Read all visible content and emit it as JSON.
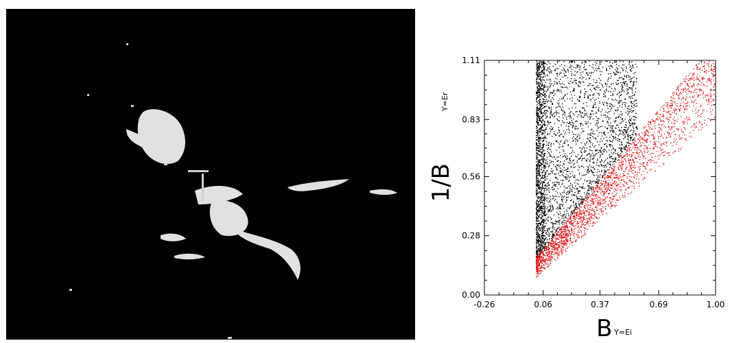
{
  "colors": {
    "background": "#ffffff",
    "image_background": "#000000",
    "image_foreground": "#f2f2f2",
    "series_black": "#000000",
    "series_red": "#e01010"
  },
  "image_panel": {
    "description_icon": "grayscale-thermal-image"
  },
  "chart_data": {
    "type": "scatter",
    "title": "",
    "xlabel": {
      "main": "B",
      "subscript": "Y=Ei"
    },
    "ylabel": {
      "main": "1/B",
      "subscript": "Y=Er"
    },
    "xlim": [
      -0.26,
      1.0
    ],
    "ylim": [
      0.0,
      1.11
    ],
    "x_ticks": [
      "-0.26",
      "0.06",
      "0.37",
      "0.69",
      "1.00"
    ],
    "y_ticks": [
      "0.00",
      "0.28",
      "0.56",
      "0.83",
      "1.11"
    ],
    "grid": false,
    "legend": "none",
    "series": [
      {
        "color": "#000000",
        "region": {
          "x_start": 0.02,
          "x_max_top": 0.42,
          "y_min_at_x_start": 0.18,
          "edge_slope": 1.05,
          "y_max": 1.11
        }
      },
      {
        "color": "#e01010",
        "region": {
          "x_start": 0.02,
          "x_end": 1.0,
          "y_lower_at_x_start": 0.08,
          "y_lower_at_x_end": 0.84,
          "y_upper_at_x_start": 0.18,
          "y_upper_slope": 1.05
        }
      }
    ]
  }
}
